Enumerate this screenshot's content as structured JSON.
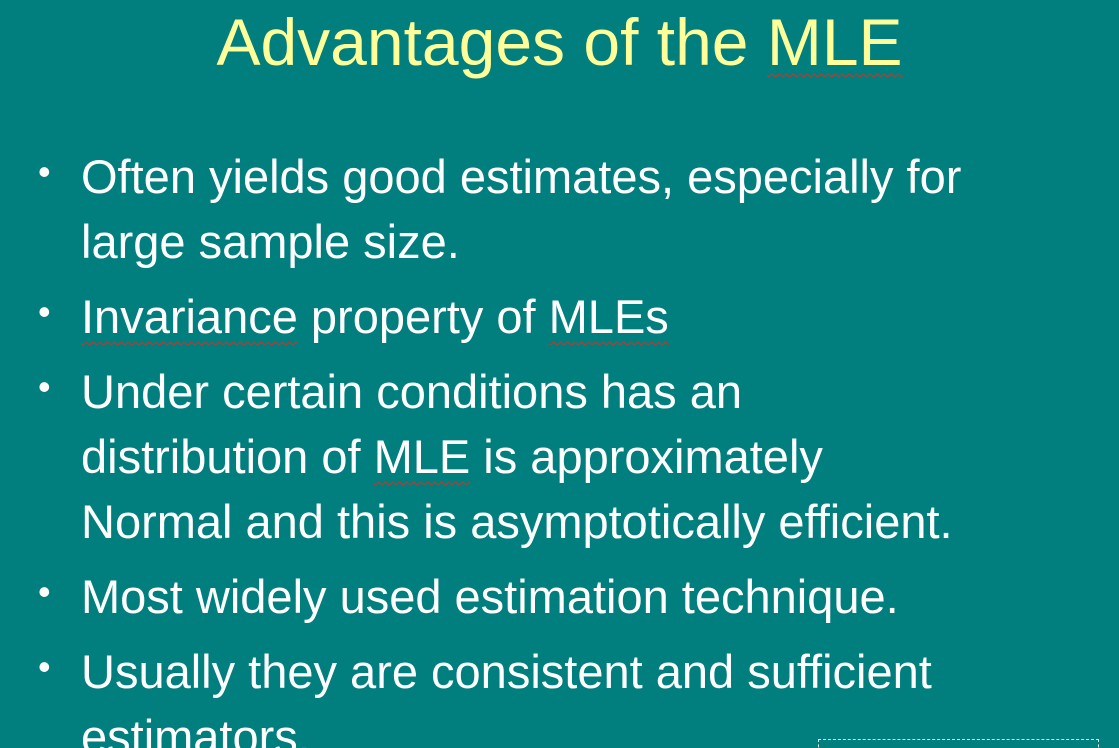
{
  "slide": {
    "title_parts": [
      "Advantages of the ",
      "MLE"
    ],
    "bullets": [
      {
        "lines": [
          "Often yields good estimates, especially for",
          "large sample size."
        ]
      },
      {
        "parts": [
          "Invariance",
          " property of ",
          "MLEs"
        ]
      },
      {
        "lines": [
          "Under certain conditions has an"
        ],
        "line2_parts": [
          "distribution of ",
          "MLE",
          " is approximately"
        ],
        "line3": "Normal and this is asymptotically efficient."
      },
      {
        "lines": [
          "Most widely used estimation technique."
        ]
      },
      {
        "lines": [
          "Usually they are consistent and sufficient",
          "estimators."
        ]
      }
    ],
    "bullet_symbol": "•"
  },
  "colors": {
    "background": "#007f7e",
    "title": "#ffff99",
    "body_text": "#ffffff",
    "spellcheck_underline": "#c0392b"
  }
}
